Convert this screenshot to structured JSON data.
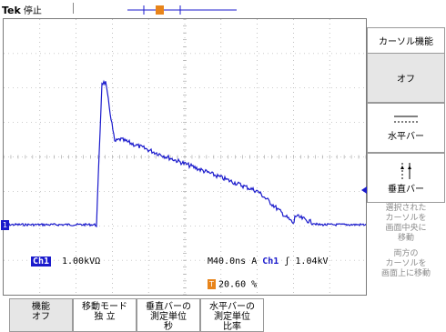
{
  "header": {
    "brand": "Tek",
    "state": "停止",
    "trigger_marker": "T"
  },
  "channel": {
    "ground_marker": "1",
    "ch_tag": "Ch1",
    "scale": "1.00kV",
    "coupling": "Ω"
  },
  "timebase": {
    "scale": "M40.0ns",
    "trigger_source_prefix": "A",
    "trigger_channel": "Ch1",
    "slope_glyph": "ʃ",
    "trigger_level": "1.04kV",
    "position_mark": "T",
    "position": "20.60 %"
  },
  "side_menu": {
    "title": "カーソル機能",
    "button_off": "オフ",
    "button_hbar_label": "水平バー",
    "button_vbar_label": "垂直バー",
    "note_center": [
      "選択された",
      "カーソルを",
      "画面中央に",
      "移動"
    ],
    "note_both": [
      "両方の",
      "カーソルを",
      "画面上に移動"
    ]
  },
  "bottom_menu": {
    "function": [
      "機能",
      "オフ"
    ],
    "move_mode": [
      "移動モード",
      "独 立"
    ],
    "vbar_unit": [
      "垂直バーの",
      "測定単位",
      "秒"
    ],
    "hbar_unit": [
      "水平バーの",
      "測定単位",
      "比率"
    ]
  },
  "colors": {
    "trace": "#1a1acc",
    "trigger": "#e8841a",
    "grid": "#9a9a9a"
  }
}
